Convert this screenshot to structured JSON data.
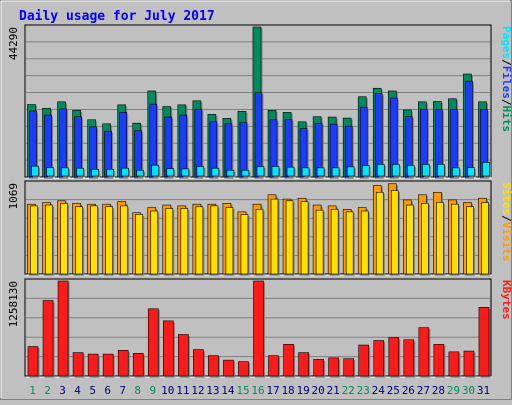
{
  "chart_data": {
    "type": "bar",
    "title": "Daily usage for July 2017",
    "days": [
      "1",
      "2",
      "3",
      "4",
      "5",
      "6",
      "7",
      "8",
      "9",
      "10",
      "11",
      "12",
      "13",
      "14",
      "15",
      "16",
      "17",
      "18",
      "19",
      "20",
      "21",
      "22",
      "23",
      "24",
      "25",
      "26",
      "27",
      "28",
      "29",
      "30",
      "31"
    ],
    "weekend_days": [
      "1",
      "2",
      "8",
      "9",
      "15",
      "16",
      "22",
      "23",
      "29",
      "30"
    ],
    "panels": [
      {
        "id": "top",
        "max_label": "44290",
        "ymax": 44290,
        "series": [
          {
            "name": "Hits",
            "color": "#008b5e",
            "values": [
              21400,
              20300,
              22200,
              19700,
              16900,
              15700,
              21300,
              15900,
              25400,
              20800,
              21300,
              22500,
              18500,
              17300,
              19400,
              44290,
              19700,
              19100,
              16300,
              17800,
              17700,
              17400,
              23700,
              26200,
              25400,
              19800,
              22200,
              22300,
              23100,
              30400,
              22200
            ]
          },
          {
            "name": "Files",
            "color": "#1b3cff",
            "values": [
              19500,
              18300,
              20100,
              17800,
              14800,
              13500,
              19100,
              13700,
              21500,
              17700,
              18300,
              20000,
              16300,
              15700,
              16100,
              24900,
              16900,
              17000,
              14300,
              15900,
              15600,
              15000,
              20600,
              24600,
              23300,
              17800,
              20000,
              19900,
              19900,
              28300,
              19900
            ]
          },
          {
            "name": "Pages",
            "color": "#00e5ff",
            "values": [
              2900,
              2500,
              2400,
              2300,
              2000,
              2000,
              2300,
              1700,
              3200,
              2200,
              2100,
              2800,
              2300,
              1700,
              1700,
              2800,
              2800,
              2600,
              2400,
              2400,
              2400,
              2700,
              3100,
              3400,
              3400,
              3100,
              3400,
              3400,
              2400,
              2500,
              4000
            ]
          }
        ]
      },
      {
        "id": "mid",
        "max_label": "1069",
        "ymax": 1069,
        "series": [
          {
            "name": "Visits",
            "color": "#ff9a00",
            "values": [
              820,
              840,
              860,
              830,
              820,
              820,
              850,
              720,
              780,
              810,
              800,
              820,
              820,
              830,
              730,
              820,
              930,
              880,
              890,
              810,
              800,
              760,
              780,
              1040,
              1060,
              870,
              930,
              960,
              870,
              840,
              890
            ]
          },
          {
            "name": "Sites",
            "color": "#ffe000",
            "values": [
              800,
              810,
              830,
              790,
              800,
              790,
              800,
              700,
              740,
              770,
              770,
              790,
              800,
              780,
              700,
              760,
              880,
              860,
              850,
              750,
              760,
              730,
              740,
              960,
              980,
              810,
              830,
              840,
              820,
              790,
              840
            ]
          }
        ]
      },
      {
        "id": "bot",
        "max_label": "1258130",
        "ymax": 1258130,
        "series": [
          {
            "name": "KBytes",
            "color": "#ff1a1a",
            "values": [
              390000,
              1000000,
              1258130,
              310000,
              290000,
              290000,
              340000,
              300000,
              890000,
              730000,
              550000,
              350000,
              270000,
              210000,
              190000,
              1258130,
              270000,
              420000,
              310000,
              220000,
              240000,
              230000,
              410000,
              470000,
              510000,
              480000,
              640000,
              420000,
              320000,
              330000,
              910000
            ]
          }
        ]
      }
    ],
    "legend": {
      "top": [
        "Pages",
        "/",
        "Files",
        "/",
        "Hits"
      ],
      "mid": [
        "Sites",
        "/",
        "Visits"
      ],
      "bot": [
        "KBytes"
      ]
    },
    "colors": {
      "background": "#c0c0c0",
      "plot": "#c0c0c0",
      "title": "#0000ff",
      "weekend_label": "#008b5e",
      "weekday_label": "#000080",
      "slash": "#000000"
    }
  }
}
